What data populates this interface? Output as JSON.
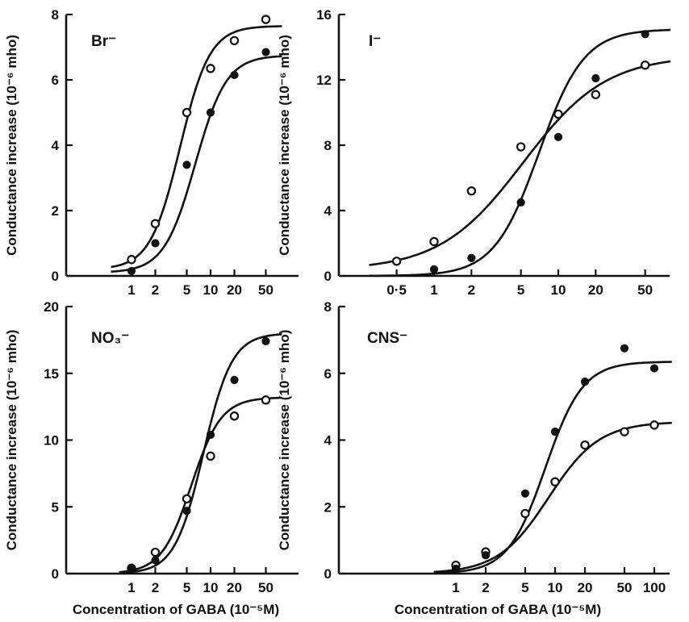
{
  "chart_data": [
    {
      "type": "line",
      "label": "Br⁻",
      "xscale": "log",
      "xticks": [
        1,
        2,
        5,
        10,
        20,
        50
      ],
      "xtick_labels": [
        "1",
        "2",
        "5",
        "10",
        "20",
        "50"
      ],
      "yticks": [
        0,
        2,
        4,
        6,
        8
      ],
      "ylim": [
        0,
        8
      ],
      "xlabel": "",
      "ylabel": "Conductance increase (10⁻⁶ mho)",
      "series": [
        {
          "marker": "open",
          "x": [
            1,
            2,
            5,
            10,
            20,
            50
          ],
          "y": [
            0.5,
            1.6,
            5.0,
            6.35,
            7.2,
            7.85
          ]
        },
        {
          "marker": "filled",
          "x": [
            1,
            2,
            5,
            10,
            20,
            50
          ],
          "y": [
            0.15,
            1.0,
            3.4,
            5.0,
            6.15,
            6.85
          ]
        }
      ]
    },
    {
      "type": "line",
      "label": "I⁻",
      "xscale": "log",
      "xticks": [
        0.5,
        1,
        2,
        5,
        10,
        20,
        50
      ],
      "xtick_labels": [
        "0·5",
        "1",
        "2",
        "5",
        "10",
        "20",
        "50"
      ],
      "yticks": [
        0,
        4,
        8,
        12,
        16
      ],
      "ylim": [
        0,
        16
      ],
      "xlabel": "",
      "ylabel": "Conductance increase (10⁻⁶ mho)",
      "series": [
        {
          "marker": "open",
          "x": [
            0.5,
            1,
            2,
            5,
            10,
            20,
            50
          ],
          "y": [
            0.9,
            2.1,
            5.2,
            7.9,
            9.9,
            11.1,
            12.9
          ]
        },
        {
          "marker": "filled",
          "x": [
            1,
            2,
            5,
            10,
            20,
            50
          ],
          "y": [
            0.4,
            1.1,
            4.5,
            8.5,
            12.1,
            14.8
          ]
        }
      ]
    },
    {
      "type": "line",
      "label": "NO₃⁻",
      "xscale": "log",
      "xticks": [
        1,
        2,
        5,
        10,
        20,
        50
      ],
      "xtick_labels": [
        "1",
        "2",
        "5",
        "10",
        "20",
        "50"
      ],
      "yticks": [
        0,
        5,
        10,
        15,
        20
      ],
      "ytick_labels": [
        "0",
        "5",
        "10",
        "15",
        "20"
      ],
      "ylim": [
        0,
        20
      ],
      "xlabel": "Concentration of GABA (10⁻⁵M)",
      "ylabel": "Conductance increase (10⁻⁶ mho)",
      "series": [
        {
          "marker": "open",
          "x": [
            1,
            2,
            5,
            10,
            20,
            50
          ],
          "y": [
            0.4,
            1.6,
            5.6,
            8.8,
            11.8,
            13.0
          ]
        },
        {
          "marker": "filled",
          "x": [
            1,
            2,
            5,
            10,
            20,
            50
          ],
          "y": [
            0.3,
            1.0,
            4.7,
            10.4,
            14.5,
            17.4
          ]
        }
      ]
    },
    {
      "type": "line",
      "label": "CNS⁻",
      "xscale": "log",
      "xticks": [
        1,
        2,
        5,
        10,
        20,
        50,
        100
      ],
      "xtick_labels": [
        "1",
        "2",
        "5",
        "10",
        "20",
        "50",
        "100"
      ],
      "yticks": [
        0,
        2,
        4,
        6,
        8
      ],
      "ylim": [
        0,
        8
      ],
      "xlabel": "Concentration of GABA (10⁻⁵M)",
      "ylabel": "Conductance increase (10⁻⁶ mho)",
      "series": [
        {
          "marker": "open",
          "x": [
            1,
            2,
            5,
            10,
            20,
            50,
            100
          ],
          "y": [
            0.25,
            0.65,
            1.8,
            2.75,
            3.85,
            4.25,
            4.45
          ]
        },
        {
          "marker": "filled",
          "x": [
            1,
            2,
            5,
            10,
            20,
            50,
            100
          ],
          "y": [
            0.15,
            0.55,
            2.4,
            4.25,
            5.75,
            6.75,
            6.15
          ]
        }
      ]
    }
  ]
}
